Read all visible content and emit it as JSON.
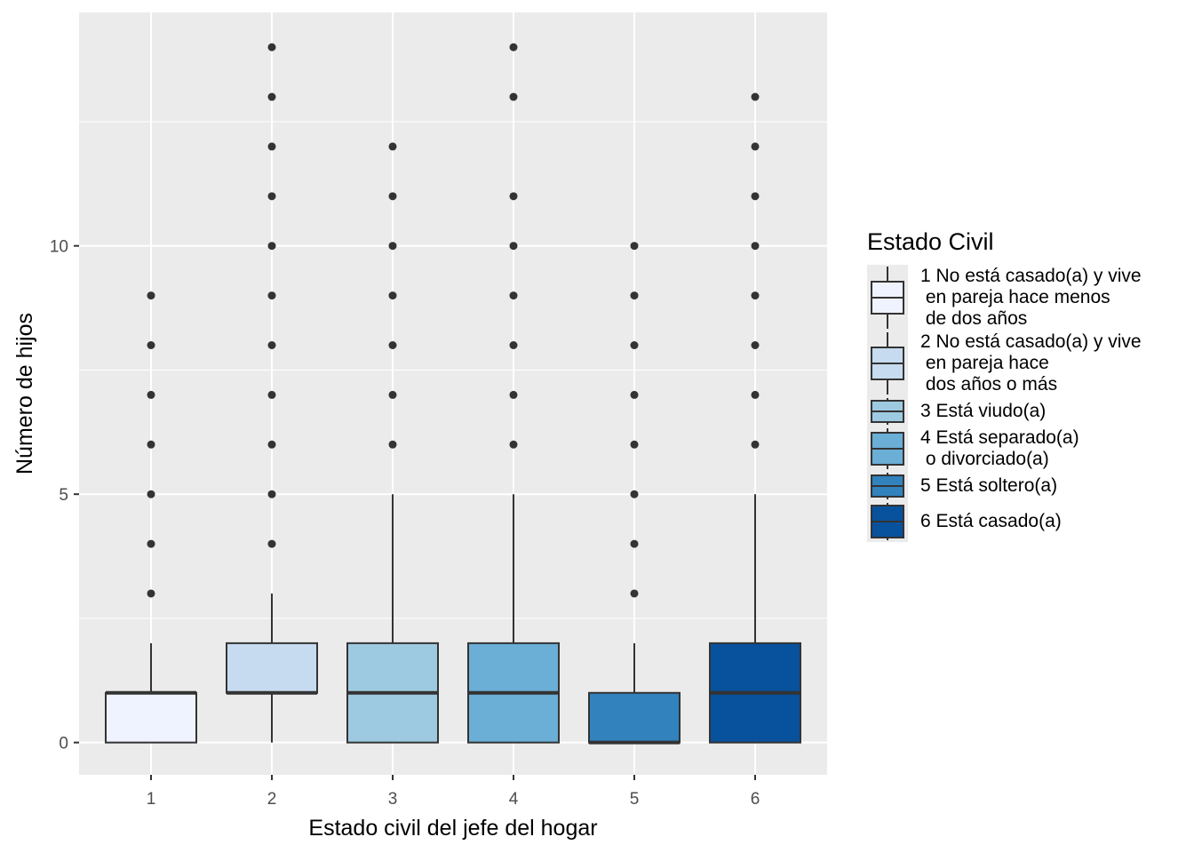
{
  "chart_data": {
    "type": "boxplot",
    "xlabel": "Estado civil del jefe del hogar",
    "ylabel": "Número de hijos",
    "ylim": [
      -0.65,
      14.7
    ],
    "y_ticks": [
      0,
      5,
      10
    ],
    "y_minor_ticks": [
      2.5,
      7.5,
      12.5
    ],
    "grid": true,
    "categories": [
      "1",
      "2",
      "3",
      "4",
      "5",
      "6"
    ],
    "boxes": [
      {
        "category": "1",
        "q1": 0,
        "median": 1,
        "q3": 1,
        "whisker_low": 0,
        "whisker_high": 2,
        "outliers": [
          3,
          4,
          5,
          6,
          7,
          8,
          9
        ],
        "color": "#eff3ff"
      },
      {
        "category": "2",
        "q1": 1,
        "median": 1,
        "q3": 2,
        "whisker_low": 0,
        "whisker_high": 3,
        "outliers": [
          4,
          5,
          6,
          7,
          8,
          9,
          10,
          11,
          12,
          13,
          14
        ],
        "color": "#c6dbef"
      },
      {
        "category": "3",
        "q1": 0,
        "median": 1,
        "q3": 2,
        "whisker_low": 0,
        "whisker_high": 5,
        "outliers": [
          6,
          7,
          8,
          9,
          10,
          11,
          12
        ],
        "color": "#9ecae1"
      },
      {
        "category": "4",
        "q1": 0,
        "median": 1,
        "q3": 2,
        "whisker_low": 0,
        "whisker_high": 5,
        "outliers": [
          6,
          7,
          8,
          9,
          10,
          11,
          13,
          14
        ],
        "color": "#6baed6"
      },
      {
        "category": "5",
        "q1": 0,
        "median": 0,
        "q3": 1,
        "whisker_low": 0,
        "whisker_high": 2,
        "outliers": [
          3,
          4,
          5,
          6,
          7,
          8,
          9,
          10
        ],
        "color": "#3182bd"
      },
      {
        "category": "6",
        "q1": 0,
        "median": 1,
        "q3": 2,
        "whisker_low": 0,
        "whisker_high": 5,
        "outliers": [
          6,
          7,
          8,
          9,
          10,
          11,
          12,
          13
        ],
        "color": "#08519c"
      }
    ],
    "legend": {
      "title": "Estado Civil",
      "position": "right",
      "entries": [
        {
          "lines": [
            "1 No está casado(a) y vive",
            "  en pareja hace menos",
            " de dos años"
          ],
          "color": "#eff3ff"
        },
        {
          "lines": [
            "2 No está casado(a) y vive",
            "  en pareja hace",
            " dos años o más"
          ],
          "color": "#c6dbef"
        },
        {
          "lines": [
            "3 Está viudo(a)"
          ],
          "color": "#9ecae1"
        },
        {
          "lines": [
            "4 Está separado(a)",
            "  o divorciado(a)"
          ],
          "color": "#6baed6"
        },
        {
          "lines": [
            "5 Está soltero(a)"
          ],
          "color": "#3182bd"
        },
        {
          "lines": [
            "6 Está casado(a)"
          ],
          "color": "#08519c"
        }
      ]
    },
    "colors": {
      "panel_background": "#ebebeb",
      "grid_major": "#ffffff",
      "outline": "#333333"
    }
  }
}
